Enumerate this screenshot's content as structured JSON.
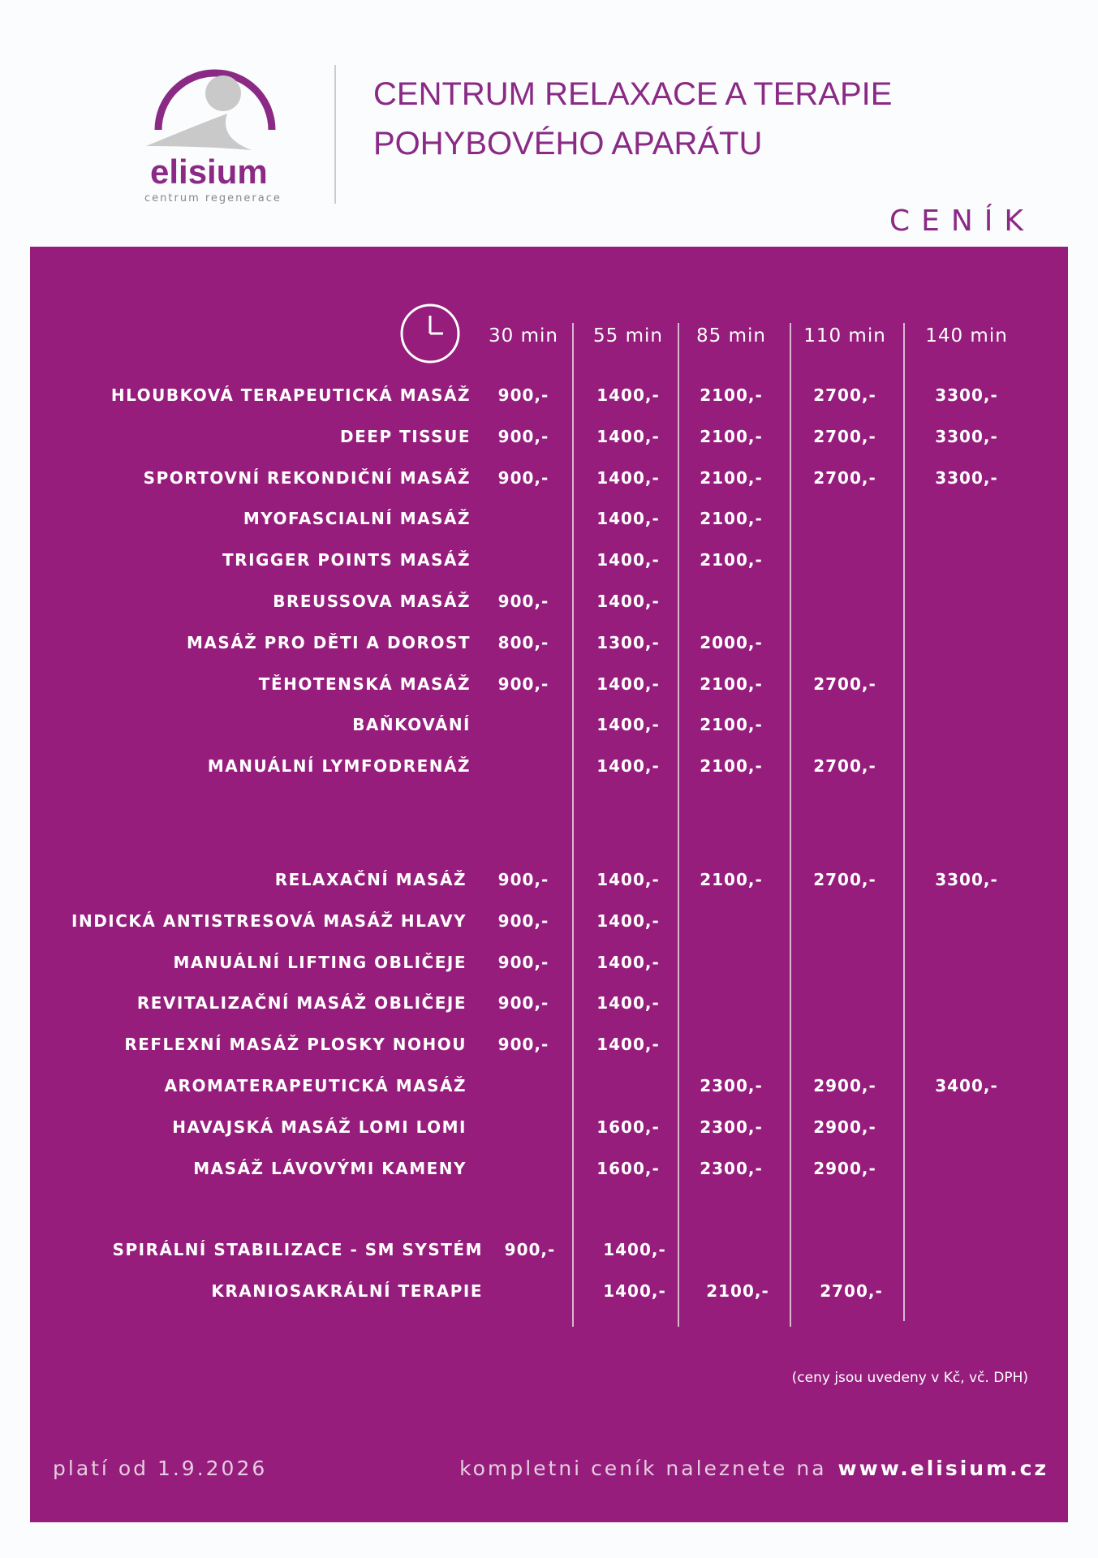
{
  "logo": {
    "name": "elisium",
    "tagline": "centrum regenerace"
  },
  "header": {
    "title_lines": [
      "CENTRUM RELAXACE A TERAPIE",
      "POHYBOVÉHO APARÁTU"
    ],
    "subtitle": "CENÍK"
  },
  "table": {
    "durations": [
      "30 min",
      "55 min",
      "85 min",
      "110 min",
      "140 min"
    ],
    "sections": [
      {
        "rows": [
          {
            "name": "HLOUBKOVÁ TERAPEUTICKÁ MASÁŽ",
            "prices": [
              "900,-",
              "1400,-",
              "2100,-",
              "2700,-",
              "3300,-"
            ]
          },
          {
            "name": "DEEP TISSUE",
            "prices": [
              "900,-",
              "1400,-",
              "2100,-",
              "2700,-",
              "3300,-"
            ]
          },
          {
            "name": "SPORTOVNÍ REKONDIČNÍ MASÁŽ",
            "prices": [
              "900,-",
              "1400,-",
              "2100,-",
              "2700,-",
              "3300,-"
            ]
          },
          {
            "name": "MYOFASCIALNÍ MASÁŽ",
            "prices": [
              null,
              "1400,-",
              "2100,-",
              null,
              null
            ]
          },
          {
            "name": "TRIGGER POINTS MASÁŽ",
            "prices": [
              null,
              "1400,-",
              "2100,-",
              null,
              null
            ]
          },
          {
            "name": "BREUSSOVA MASÁŽ",
            "prices": [
              "900,-",
              "1400,-",
              null,
              null,
              null
            ]
          },
          {
            "name": "MASÁŽ PRO DĚTI A DOROST",
            "prices": [
              "800,-",
              "1300,-",
              "2000,-",
              null,
              null
            ]
          },
          {
            "name": "TĚHOTENSKÁ MASÁŽ",
            "prices": [
              "900,-",
              "1400,-",
              "2100,-",
              "2700,-",
              null
            ]
          },
          {
            "name": "BAŇKOVÁNÍ",
            "prices": [
              null,
              "1400,-",
              "2100,-",
              null,
              null
            ]
          },
          {
            "name": "MANUÁLNÍ LYMFODRENÁŽ",
            "prices": [
              null,
              "1400,-",
              "2100,-",
              "2700,-",
              null
            ]
          }
        ]
      },
      {
        "rows": [
          {
            "name": "RELAXAČNÍ MASÁŽ",
            "prices": [
              "900,-",
              "1400,-",
              "2100,-",
              "2700,-",
              "3300,-"
            ]
          },
          {
            "name": "INDICKÁ ANTISTRESOVÁ MASÁŽ HLAVY",
            "prices": [
              "900,-",
              "1400,-",
              null,
              null,
              null
            ]
          },
          {
            "name": "MANUÁLNÍ LIFTING OBLIČEJE",
            "prices": [
              "900,-",
              "1400,-",
              null,
              null,
              null
            ]
          },
          {
            "name": "REVITALIZAČNÍ MASÁŽ OBLIČEJE",
            "prices": [
              "900,-",
              "1400,-",
              null,
              null,
              null
            ]
          },
          {
            "name": "REFLEXNÍ MASÁŽ PLOSKY NOHOU",
            "prices": [
              "900,-",
              "1400,-",
              null,
              null,
              null
            ]
          },
          {
            "name": "AROMATERAPEUTICKÁ MASÁŽ",
            "prices": [
              null,
              null,
              "2300,-",
              "2900,-",
              "3400,-"
            ]
          },
          {
            "name": "HAVAJSKÁ MASÁŽ LOMI LOMI",
            "prices": [
              null,
              "1600,-",
              "2300,-",
              "2900,-",
              null
            ]
          },
          {
            "name": "MASÁŽ LÁVOVÝMI KAMENY",
            "prices": [
              null,
              "1600,-",
              "2300,-",
              "2900,-",
              null
            ]
          }
        ]
      },
      {
        "rows": [
          {
            "name": "SPIRÁLNÍ STABILIZACE - SM SYSTÉM",
            "prices": [
              "900,-",
              "1400,-",
              null,
              null,
              null
            ]
          },
          {
            "name": "KRANIOSAKRÁLNÍ TERAPIE",
            "prices": [
              null,
              "1400,-",
              "2100,-",
              "2700,-",
              null
            ]
          }
        ]
      }
    ],
    "note": "(ceny jsou uvedeny v Kč, vč. DPH)"
  },
  "footer": {
    "valid_from": "platí od 1.9.2026",
    "more_text": "kompletni ceník naleznete na",
    "url": "www.elisium.cz"
  }
}
